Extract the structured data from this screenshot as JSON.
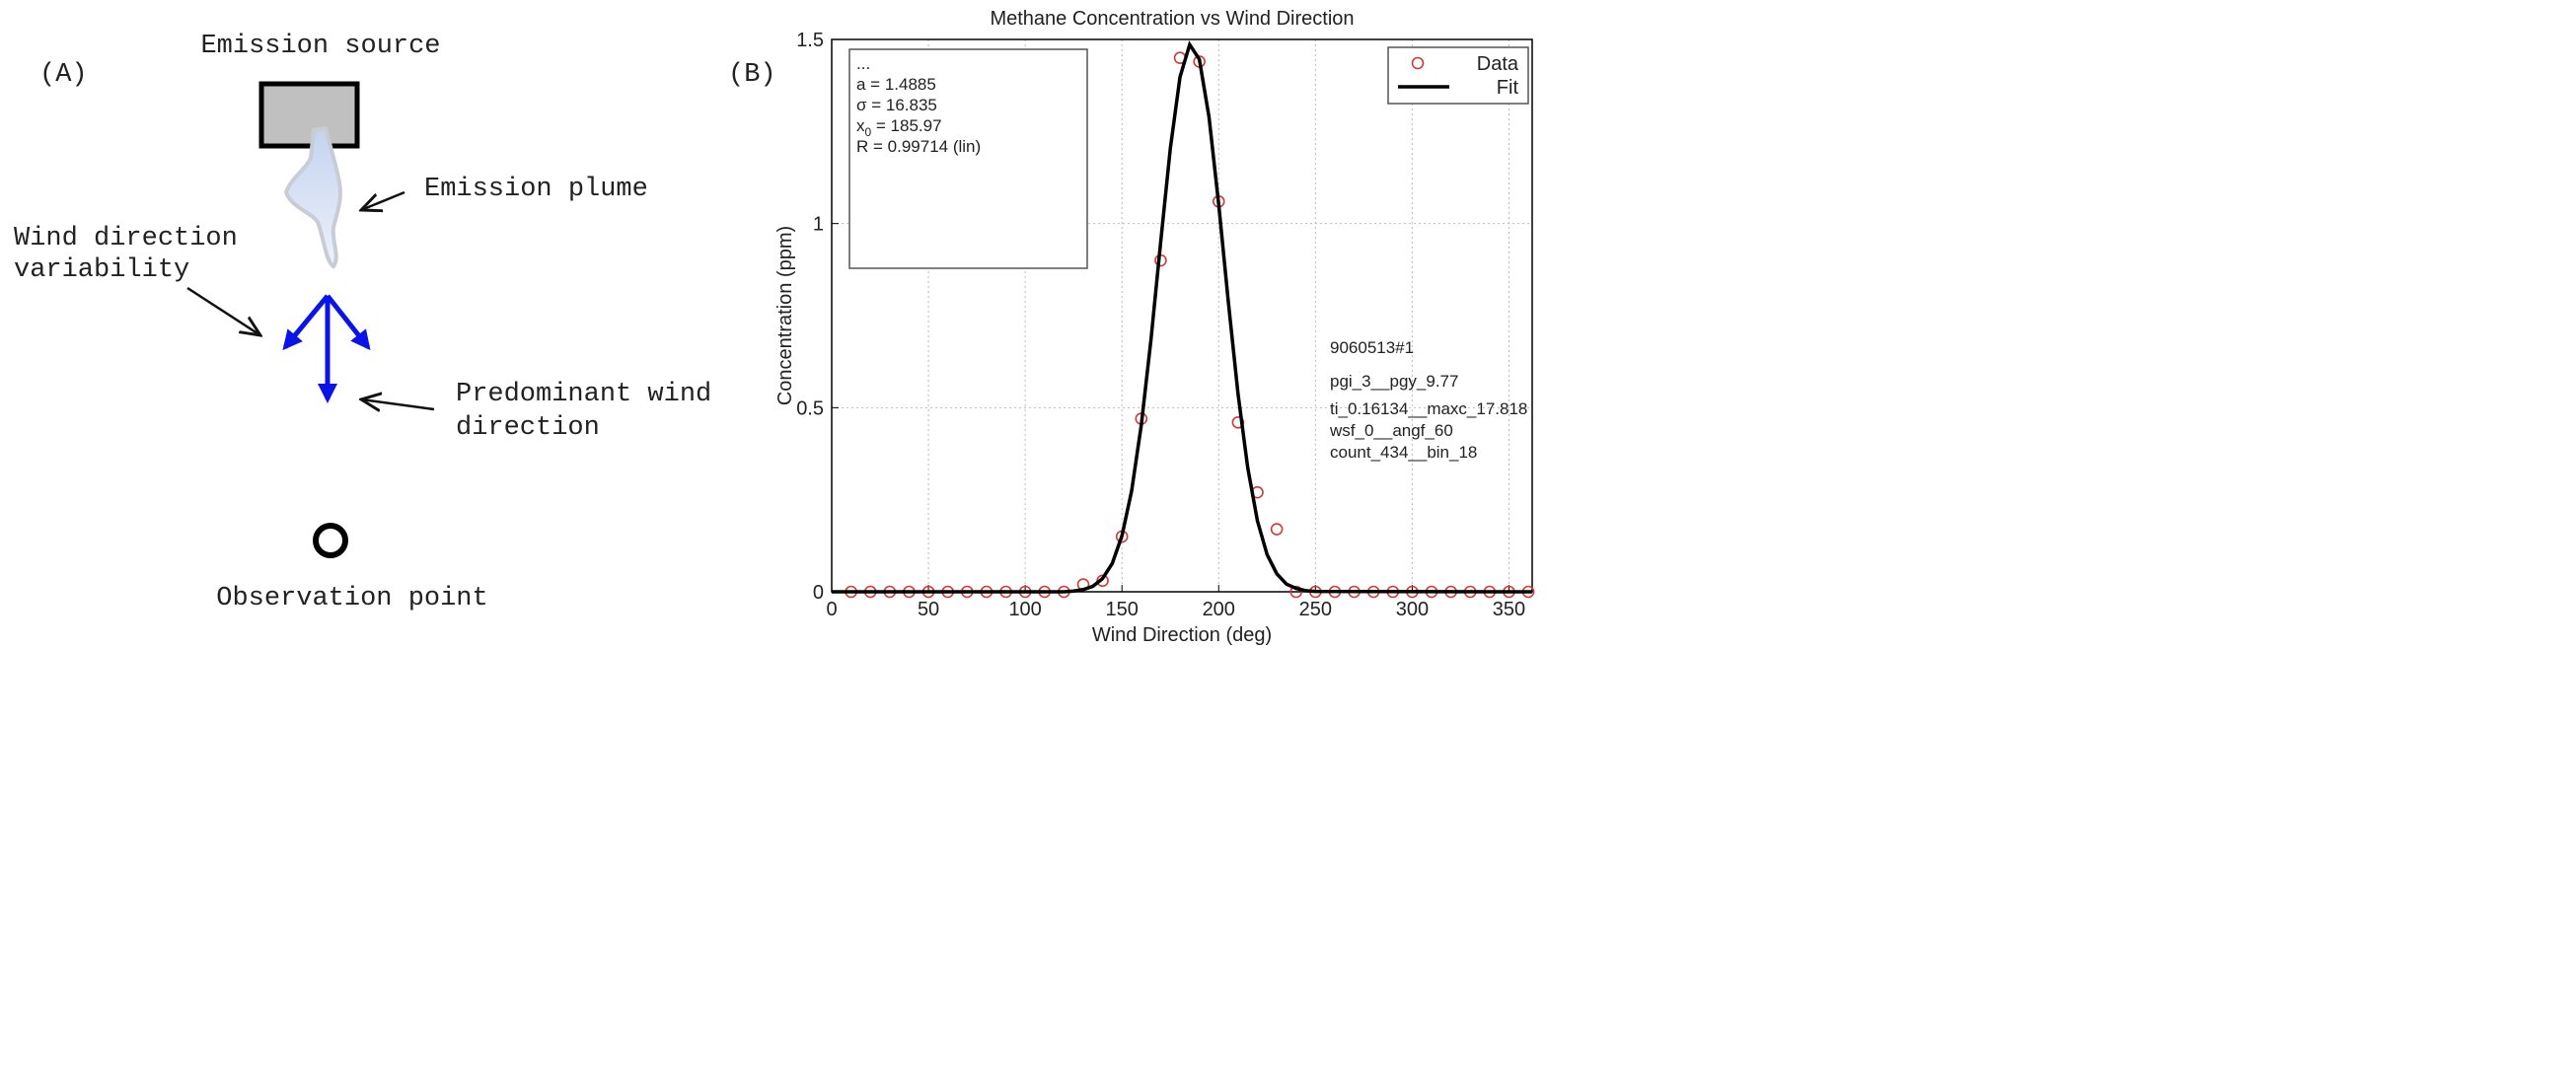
{
  "panel_a": {
    "label": "(A)",
    "emission_source": "Emission source",
    "emission_plume": "Emission plume",
    "wind_variability": [
      "Wind direction",
      "variability"
    ],
    "predominant_wind": [
      "Predominant wind",
      "direction"
    ],
    "observation_point": "Observation point"
  },
  "panel_b_label": "(B)",
  "chart_data": {
    "type": "scatter",
    "title": "Methane Concentration vs Wind Direction",
    "xlabel": "Wind Direction (deg)",
    "ylabel": "Concentration (ppm)",
    "xlim": [
      0,
      362
    ],
    "ylim": [
      0,
      1.5
    ],
    "xticks": [
      0,
      50,
      100,
      150,
      200,
      250,
      300,
      350
    ],
    "yticks": [
      0,
      0.5,
      1,
      1.5
    ],
    "grid": true,
    "legend": "upper right",
    "series": [
      {
        "name": "Data",
        "kind": "marker",
        "color": "#d03a35",
        "x": [
          10,
          20,
          30,
          40,
          50,
          60,
          70,
          80,
          90,
          100,
          110,
          120,
          130,
          140,
          150,
          160,
          170,
          180,
          190,
          200,
          210,
          220,
          230,
          240,
          250,
          260,
          270,
          280,
          290,
          300,
          310,
          320,
          330,
          340,
          350,
          360
        ],
        "values": [
          0,
          0,
          0,
          0,
          0,
          0,
          0,
          0,
          0,
          0,
          0,
          0,
          0.02,
          0.03,
          0.15,
          0.47,
          0.9,
          1.45,
          1.44,
          1.06,
          0.46,
          0.27,
          0.17,
          0,
          0,
          0,
          0,
          0,
          0,
          0,
          0,
          0,
          0,
          0,
          0,
          0
        ]
      },
      {
        "name": "Fit",
        "kind": "line",
        "color": "#000000",
        "x": [
          0,
          120,
          125,
          130,
          135,
          140,
          145,
          150,
          155,
          160,
          165,
          170,
          175,
          180,
          185,
          190,
          195,
          200,
          205,
          210,
          215,
          220,
          225,
          230,
          235,
          240,
          245,
          250,
          362
        ],
        "values": [
          0,
          0,
          0.002,
          0.006,
          0.015,
          0.036,
          0.077,
          0.152,
          0.274,
          0.453,
          0.685,
          0.949,
          1.204,
          1.398,
          1.486,
          1.446,
          1.289,
          1.052,
          0.786,
          0.537,
          0.337,
          0.193,
          0.101,
          0.049,
          0.021,
          0.009,
          0.003,
          0.001,
          0
        ]
      }
    ],
    "fit_box": [
      "...",
      "a = 1.4885",
      "σ = 16.835",
      {
        "text": "x",
        "sub": "0",
        "tail": " = 185.97"
      },
      "R = 0.99714  (lin)"
    ],
    "annotations": [
      "9060513#1",
      "pgi_3__pgy_9.77",
      "ti_0.16134__maxc_17.818",
      "wsf_0__angf_60",
      "count_434__bin_18"
    ]
  }
}
